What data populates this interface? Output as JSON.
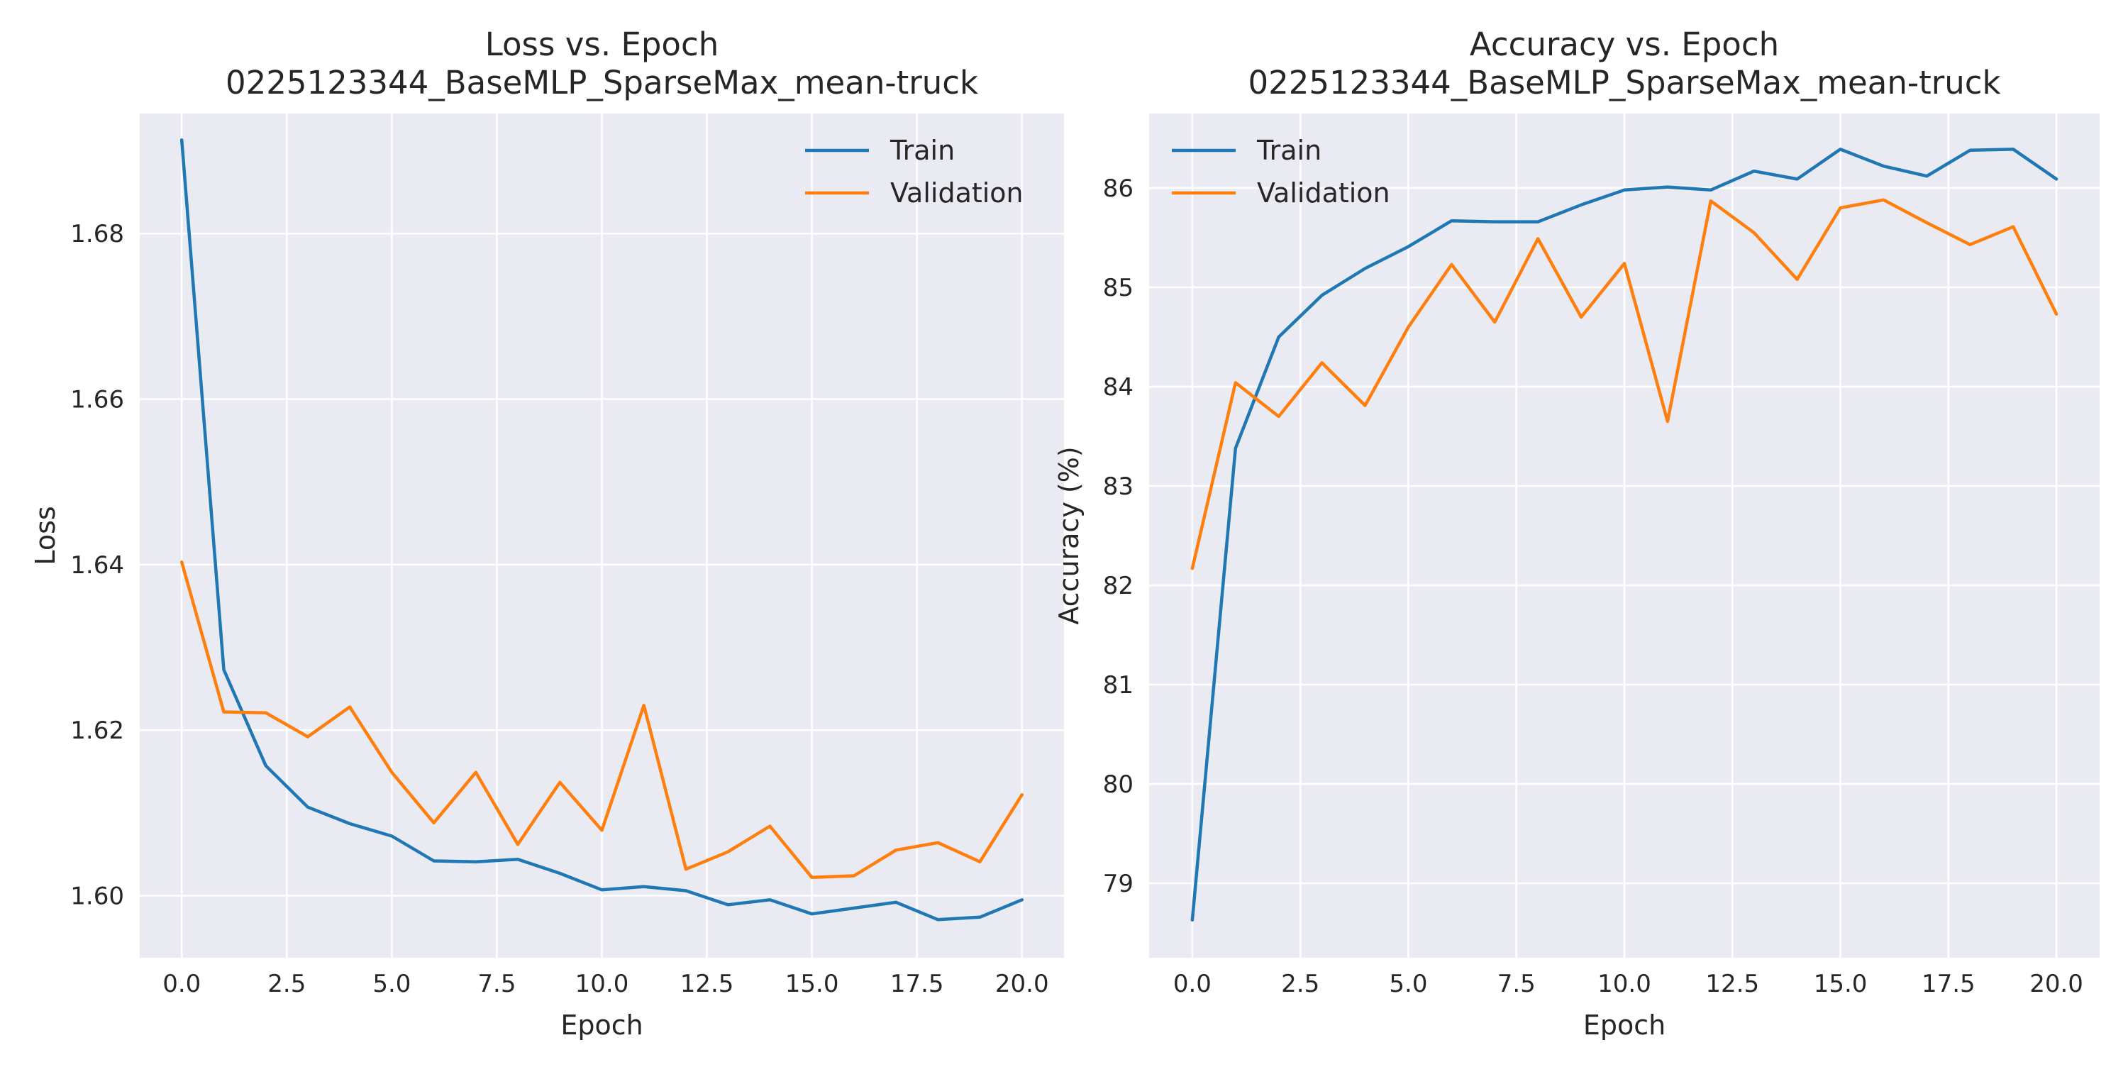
{
  "chart_data": [
    {
      "type": "line",
      "title": "Loss vs. Epoch",
      "subtitle": "0225123344_BaseMLP_SparseMax_mean-truck",
      "xlabel": "Epoch",
      "ylabel": "Loss",
      "xlim": [
        -1.0,
        21.0
      ],
      "ylim": [
        1.5925,
        1.6945
      ],
      "xticks": [
        0.0,
        2.5,
        5.0,
        7.5,
        10.0,
        12.5,
        15.0,
        17.5,
        20.0
      ],
      "xtick_labels": [
        "0.0",
        "2.5",
        "5.0",
        "7.5",
        "10.0",
        "12.5",
        "15.0",
        "17.5",
        "20.0"
      ],
      "yticks": [
        1.6,
        1.62,
        1.64,
        1.66,
        1.68
      ],
      "ytick_labels": [
        "1.60",
        "1.62",
        "1.64",
        "1.66",
        "1.68"
      ],
      "grid": true,
      "legend": "top-right",
      "x": [
        0,
        1,
        2,
        3,
        4,
        5,
        6,
        7,
        8,
        9,
        10,
        11,
        12,
        13,
        14,
        15,
        16,
        17,
        18,
        19,
        20
      ],
      "series": [
        {
          "name": "Train",
          "color": "#1f77b4",
          "values": [
            1.6913,
            1.6273,
            1.6157,
            1.6107,
            1.6087,
            1.6072,
            1.6042,
            1.6041,
            1.6044,
            1.6027,
            1.6007,
            1.6011,
            1.6006,
            1.5989,
            1.5995,
            1.5978,
            1.5985,
            1.5992,
            1.5971,
            1.5974,
            1.5995
          ]
        },
        {
          "name": "Validation",
          "color": "#ff7f0e",
          "values": [
            1.6403,
            1.6222,
            1.6221,
            1.6192,
            1.6228,
            1.6149,
            1.6088,
            1.6149,
            1.6062,
            1.6137,
            1.6079,
            1.623,
            1.6032,
            1.6053,
            1.6084,
            1.6022,
            1.6024,
            1.6055,
            1.6064,
            1.6041,
            1.6122
          ]
        }
      ]
    },
    {
      "type": "line",
      "title": "Accuracy vs. Epoch",
      "subtitle": "0225123344_BaseMLP_SparseMax_mean-truck",
      "xlabel": "Epoch",
      "ylabel": "Accuracy (%)",
      "xlim": [
        -1.0,
        21.0
      ],
      "ylim": [
        78.25,
        86.75
      ],
      "xticks": [
        0.0,
        2.5,
        5.0,
        7.5,
        10.0,
        12.5,
        15.0,
        17.5,
        20.0
      ],
      "xtick_labels": [
        "0.0",
        "2.5",
        "5.0",
        "7.5",
        "10.0",
        "12.5",
        "15.0",
        "17.5",
        "20.0"
      ],
      "yticks": [
        79,
        80,
        81,
        82,
        83,
        84,
        85,
        86
      ],
      "ytick_labels": [
        "79",
        "80",
        "81",
        "82",
        "83",
        "84",
        "85",
        "86"
      ],
      "grid": true,
      "legend": "top-left",
      "x": [
        0,
        1,
        2,
        3,
        4,
        5,
        6,
        7,
        8,
        9,
        10,
        11,
        12,
        13,
        14,
        15,
        16,
        17,
        18,
        19,
        20
      ],
      "series": [
        {
          "name": "Train",
          "color": "#1f77b4",
          "values": [
            78.63,
            83.38,
            84.5,
            84.92,
            85.19,
            85.41,
            85.67,
            85.66,
            85.66,
            85.83,
            85.98,
            86.01,
            85.98,
            86.17,
            86.09,
            86.39,
            86.22,
            86.12,
            86.38,
            86.39,
            86.09
          ]
        },
        {
          "name": "Validation",
          "color": "#ff7f0e",
          "values": [
            82.17,
            84.04,
            83.7,
            84.24,
            83.81,
            84.6,
            85.23,
            84.65,
            85.49,
            84.7,
            85.24,
            83.65,
            85.87,
            85.55,
            85.08,
            85.8,
            85.88,
            85.65,
            85.43,
            85.61,
            84.73
          ]
        }
      ]
    }
  ]
}
